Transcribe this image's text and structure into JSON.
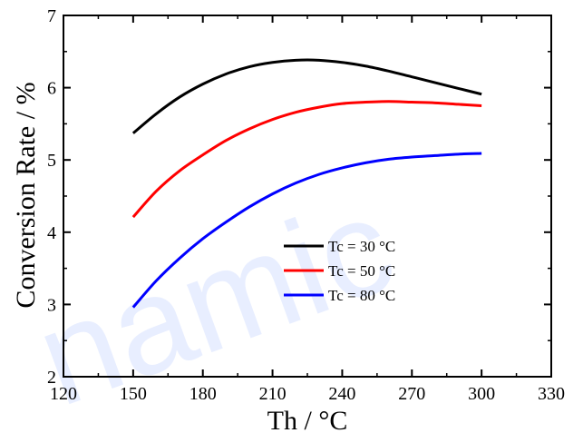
{
  "watermark": "namic",
  "chart_data": {
    "type": "line",
    "title": "",
    "xlabel": "Th / °C",
    "ylabel": "Conversion Rate / %",
    "xlim": [
      120,
      330
    ],
    "ylim": [
      2,
      7
    ],
    "xticks": [
      120,
      150,
      180,
      210,
      240,
      270,
      300,
      330
    ],
    "yticks": [
      2,
      3,
      4,
      5,
      6,
      7
    ],
    "grid": false,
    "legend_position": "center",
    "x": [
      150,
      160,
      170,
      180,
      190,
      200,
      210,
      220,
      230,
      240,
      250,
      260,
      270,
      280,
      290,
      300
    ],
    "series": [
      {
        "name": "Tc = 30 °C",
        "color": "#000000",
        "values": [
          5.37,
          5.64,
          5.87,
          6.05,
          6.19,
          6.29,
          6.35,
          6.38,
          6.38,
          6.35,
          6.3,
          6.23,
          6.15,
          6.07,
          5.99,
          5.91
        ]
      },
      {
        "name": "Tc = 50 °C",
        "color": "#ff0000",
        "values": [
          4.21,
          4.57,
          4.85,
          5.07,
          5.27,
          5.43,
          5.56,
          5.66,
          5.73,
          5.78,
          5.8,
          5.81,
          5.8,
          5.79,
          5.77,
          5.75
        ]
      },
      {
        "name": "Tc = 80 °C",
        "color": "#0000ff",
        "values": [
          2.96,
          3.33,
          3.64,
          3.91,
          4.14,
          4.35,
          4.53,
          4.68,
          4.8,
          4.89,
          4.96,
          5.01,
          5.04,
          5.06,
          5.08,
          5.09
        ]
      }
    ]
  }
}
